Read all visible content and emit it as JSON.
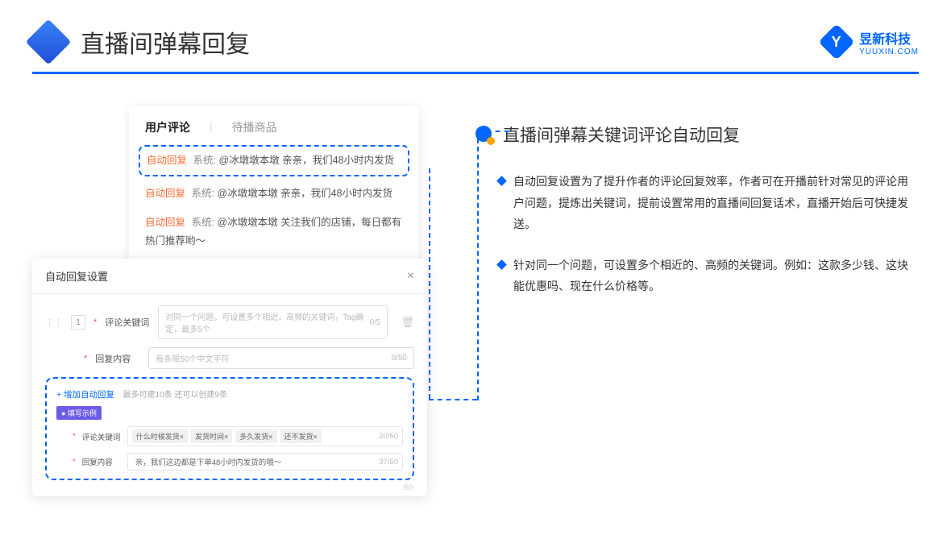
{
  "header": {
    "title": "直播间弹幕回复",
    "brand_name": "昱新科技",
    "brand_sub": "YUUXIN.COM",
    "brand_letter": "Y"
  },
  "comments": {
    "tab_active": "用户评论",
    "tab_inactive": "待播商品",
    "items": [
      {
        "tag": "自动回复",
        "sys": "系统:",
        "text": "@冰墩墩本墩 亲亲，我们48小时内发货",
        "hl": true
      },
      {
        "tag": "自动回复",
        "sys": "系统:",
        "text": "@冰墩墩本墩 亲亲，我们48小时内发货",
        "hl": false
      },
      {
        "tag": "自动回复",
        "sys": "系统:",
        "text": "@冰墩墩本墩 关注我们的店铺，每日都有热门推荐哟～",
        "hl": false
      }
    ]
  },
  "settings": {
    "title": "自动回复设置",
    "row_num": "1",
    "kw_label": "评论关键词",
    "kw_placeholder": "对同一个问题，可设置多个相近、高频的关键词，Tag确定，最多5个",
    "kw_counter": "0/5",
    "reply_label": "回复内容",
    "reply_placeholder": "每条限50个中文字符",
    "reply_counter": "0/50",
    "add_link": "+ 增加自动回复",
    "add_hint": "最多可建10条 还可以创建9条",
    "example_badge": "● 填写示例",
    "ex_kw_label": "评论关键词",
    "ex_tags": [
      "什么时候发货×",
      "发货时间×",
      "多久发货×",
      "还不发货×"
    ],
    "ex_kw_counter": "20/50",
    "ex_reply_label": "回复内容",
    "ex_reply_text": "亲，我们这边都是下单48小时内发货的哦～",
    "ex_reply_counter": "37/50",
    "under_counter": "/50"
  },
  "right": {
    "section_title": "直播间弹幕关键词评论自动回复",
    "points": [
      "自动回复设置为了提升作者的评论回复效率，作者可在开播前针对常见的评论用户问题，提炼出关键词，提前设置常用的直播间回复话术，直播开始后可快捷发送。",
      "针对同一个问题，可设置多个相近的、高频的关键词。例如：这款多少钱、这块能优惠吗、现在什么价格等。"
    ]
  }
}
